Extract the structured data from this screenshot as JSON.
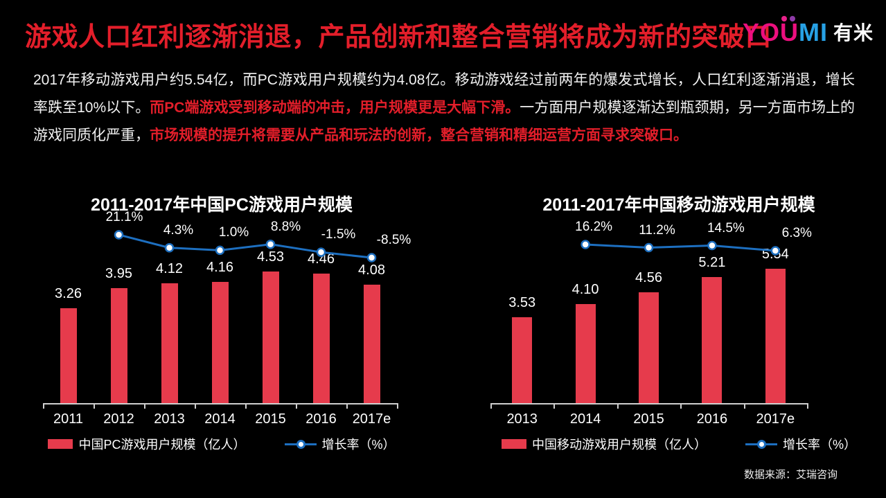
{
  "header": {
    "title": "游戏人口红利逐渐消退，产品创新和整合营销将成为新的突破口",
    "logo": {
      "you": "YO",
      "u": "U",
      "mi": "MI",
      "cn": "有米"
    }
  },
  "intro": {
    "segments": [
      {
        "text": "2017年移动游戏用户约5.54亿，而PC游戏用户规模约为4.08亿。移动游戏经过前两年的爆发式增长，人口红利逐渐消退，增长率跌至10%以下。",
        "bold": false
      },
      {
        "text": "而PC端游戏受到移动端的冲击，用户规模更是大幅下滑。",
        "bold": true
      },
      {
        "text": "一方面用户规模逐渐达到瓶颈期，另一方面市场上的游戏同质化严重，",
        "bold": false
      },
      {
        "text": "市场规模的提升将需要从产品和玩法的创新，整合营销和精细运营方面寻求突破口。",
        "bold": true
      }
    ]
  },
  "chart_data": [
    {
      "type": "bar",
      "subtype": "bar+line",
      "title": "2011-2017年中国PC游戏用户规模",
      "categories": [
        "2011",
        "2012",
        "2013",
        "2014",
        "2015",
        "2016",
        "2017e"
      ],
      "series": [
        {
          "name": "中国PC游戏用户规模（亿人）",
          "type": "bar",
          "values": [
            3.26,
            3.95,
            4.12,
            4.16,
            4.53,
            4.46,
            4.08
          ]
        },
        {
          "name": "增长率（%）",
          "type": "line",
          "values": [
            null,
            21.1,
            4.3,
            1.0,
            8.8,
            -1.5,
            -8.5
          ]
        }
      ],
      "legend_position": "bottom",
      "grid": false
    },
    {
      "type": "bar",
      "subtype": "bar+line",
      "title": "2011-2017年中国移动游戏用户规模",
      "categories": [
        "2013",
        "2014",
        "2015",
        "2016",
        "2017e"
      ],
      "series": [
        {
          "name": "中国移动游戏用户规模（亿人）",
          "type": "bar",
          "values": [
            3.53,
            4.1,
            4.56,
            5.21,
            5.54
          ]
        },
        {
          "name": "增长率（%）",
          "type": "line",
          "values": [
            null,
            16.2,
            11.2,
            14.5,
            6.3
          ]
        }
      ],
      "legend_position": "bottom",
      "grid": false
    }
  ],
  "footer": {
    "source": "数据来源：艾瑞咨询"
  },
  "colors": {
    "background": "#000000",
    "accent_red": "#e31e2a",
    "bar_red": "#e63b4c",
    "line_blue": "#1d6fc0",
    "logo_magenta": "#ec0f7e",
    "logo_blue": "#27a1e5"
  }
}
